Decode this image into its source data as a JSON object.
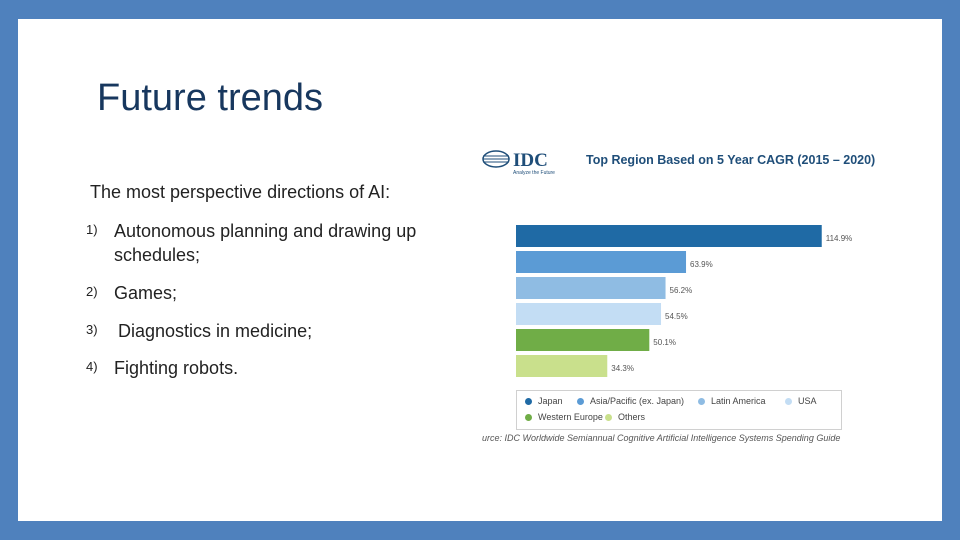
{
  "slide": {
    "title": "Future trends",
    "intro": "The most perspective directions of AI:",
    "items": [
      {
        "num": "1)",
        "text": "Autonomous planning and drawing up schedules;"
      },
      {
        "num": "2)",
        "text": "Games;"
      },
      {
        "num": "3)",
        "text": "Diagnostics in medicine;"
      },
      {
        "num": "4)",
        "text": "Fighting robots."
      }
    ]
  },
  "figure": {
    "logo_text": "IDC",
    "logo_tagline": "Analyze the Future",
    "source": "urce: IDC Worldwide Semiannual Cognitive Artificial Intelligence Systems Spending Guide"
  },
  "chart_data": {
    "type": "bar",
    "orientation": "horizontal",
    "title": "Top Region Based on 5 Year CAGR (2015 – 2020)",
    "categories": [
      "Japan",
      "Asia/Pacific (ex. Japan)",
      "Latin America",
      "USA",
      "Western Europe",
      "Others"
    ],
    "values": [
      114.9,
      63.9,
      56.2,
      54.5,
      50.1,
      34.3
    ],
    "labels": [
      "114.9%",
      "63.9%",
      "56.2%",
      "54.5%",
      "50.1%",
      "34.3%"
    ],
    "colors": [
      "#1f6aa5",
      "#5b9bd5",
      "#8fbce3",
      "#c3ddf4",
      "#70ad47",
      "#c9e08c"
    ],
    "legend_position": "bottom",
    "xlim": [
      0,
      115
    ]
  }
}
